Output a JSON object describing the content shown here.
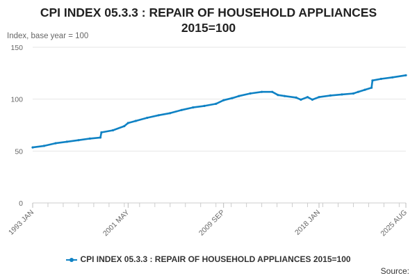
{
  "chart_data": {
    "type": "line",
    "title_lines": [
      "CPI INDEX 05.3.3 : REPAIR OF HOUSEHOLD APPLIANCES",
      "2015=100"
    ],
    "ylabel": "Index, base year = 100",
    "ylim": [
      0,
      150
    ],
    "yticks": [
      0,
      50,
      100,
      150
    ],
    "grid": true,
    "legend_position": "bottom",
    "x_tick_labels": [
      "1993 JAN",
      "2001 MAY",
      "2009 SEP",
      "2018 JAN",
      "2025 AUG"
    ],
    "x_range": [
      "1993-01",
      "2025-08"
    ],
    "series": [
      {
        "name": "CPI INDEX 05.3.3 : REPAIR OF HOUSEHOLD APPLIANCES 2015=100",
        "color": "#0f82c4",
        "points": [
          [
            "1993-01",
            53.5
          ],
          [
            "1994-01",
            55.0
          ],
          [
            "1995-01",
            57.5
          ],
          [
            "1996-01",
            59.0
          ],
          [
            "1997-01",
            60.5
          ],
          [
            "1998-01",
            62.0
          ],
          [
            "1998-12",
            63.0
          ],
          [
            "1999-01",
            68.0
          ],
          [
            "2000-01",
            70.0
          ],
          [
            "2001-01",
            74.0
          ],
          [
            "2001-05",
            77.0
          ],
          [
            "2002-01",
            79.0
          ],
          [
            "2003-01",
            82.0
          ],
          [
            "2004-01",
            84.5
          ],
          [
            "2005-01",
            86.5
          ],
          [
            "2006-01",
            89.5
          ],
          [
            "2007-01",
            92.0
          ],
          [
            "2008-01",
            93.5
          ],
          [
            "2009-01",
            95.5
          ],
          [
            "2009-09",
            99.0
          ],
          [
            "2010-06",
            101.0
          ],
          [
            "2011-01",
            103.0
          ],
          [
            "2012-01",
            105.5
          ],
          [
            "2013-01",
            107.0
          ],
          [
            "2013-12",
            107.0
          ],
          [
            "2014-06",
            104.0
          ],
          [
            "2015-01",
            103.0
          ],
          [
            "2016-01",
            101.5
          ],
          [
            "2016-06",
            99.5
          ],
          [
            "2017-01",
            102.0
          ],
          [
            "2017-06",
            99.5
          ],
          [
            "2018-01",
            102.0
          ],
          [
            "2019-01",
            103.5
          ],
          [
            "2020-01",
            104.5
          ],
          [
            "2021-01",
            105.5
          ],
          [
            "2021-06",
            107.0
          ],
          [
            "2022-01",
            109.0
          ],
          [
            "2022-08",
            111.0
          ],
          [
            "2022-09",
            118.0
          ],
          [
            "2023-06",
            119.5
          ],
          [
            "2024-06",
            121.0
          ],
          [
            "2025-08",
            123.0
          ]
        ]
      }
    ]
  },
  "legend": {
    "label": "CPI INDEX 05.3.3 : REPAIR OF HOUSEHOLD APPLIANCES 2015=100"
  },
  "footer": {
    "source_label": "Source:"
  }
}
